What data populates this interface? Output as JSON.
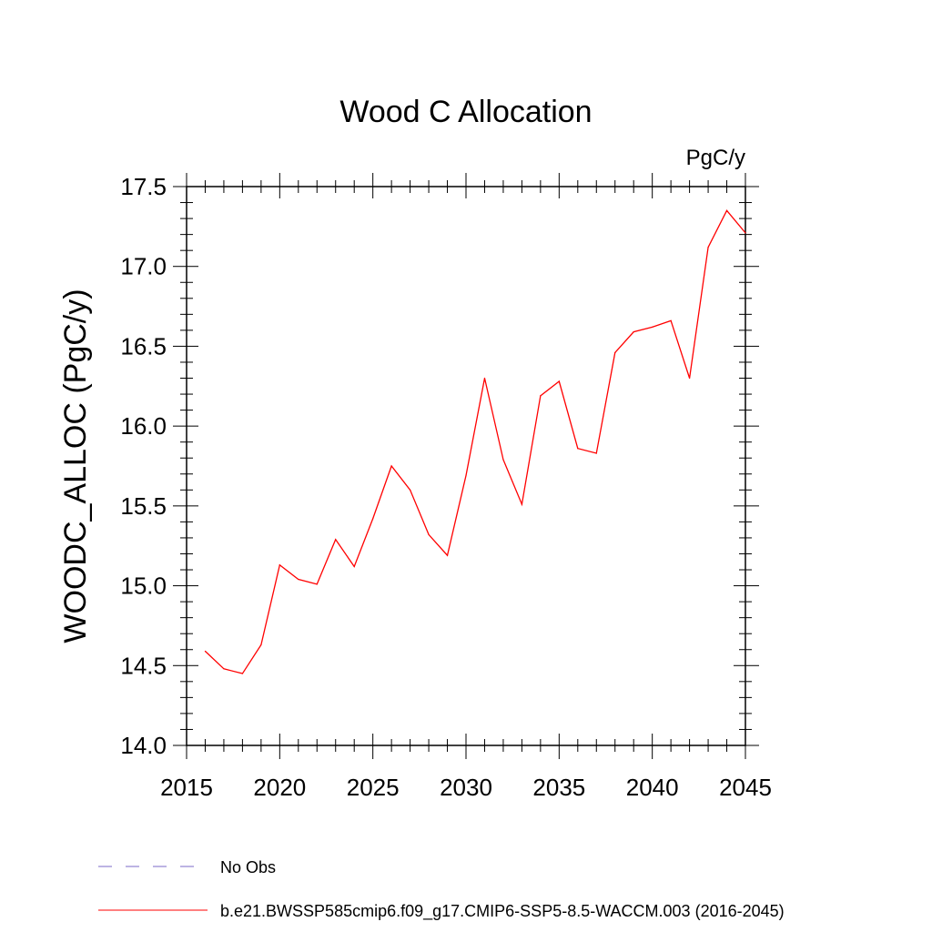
{
  "chart_data": {
    "type": "line",
    "title": "Wood C Allocation",
    "units_label": "PgC/y",
    "ylabel": "WOODC_ALLOC  (PgC/y)",
    "xlabel": "",
    "xlim": [
      2015,
      2045
    ],
    "ylim": [
      14.0,
      17.5
    ],
    "x_major_ticks": [
      2015,
      2020,
      2025,
      2030,
      2035,
      2040,
      2045
    ],
    "x_tick_labels": [
      "2015",
      "2020",
      "2025",
      "2030",
      "2035",
      "2040",
      "2045"
    ],
    "y_major_ticks": [
      14.0,
      14.5,
      15.0,
      15.5,
      16.0,
      16.5,
      17.0,
      17.5
    ],
    "y_tick_labels": [
      "14.0",
      "14.5",
      "15.0",
      "15.5",
      "16.0",
      "16.5",
      "17.0",
      "17.5"
    ],
    "grid": false,
    "legend_position": "bottom-left",
    "series": [
      {
        "name": "b.e21.BWSSP585cmip6.f09_g17.CMIP6-SSP5-8.5-WACCM.003 (2016-2045)",
        "color": "#ff0000",
        "line_style": "solid",
        "x": [
          2016,
          2017,
          2018,
          2019,
          2020,
          2021,
          2022,
          2023,
          2024,
          2025,
          2026,
          2027,
          2028,
          2029,
          2030,
          2031,
          2032,
          2033,
          2034,
          2035,
          2036,
          2037,
          2038,
          2039,
          2040,
          2041,
          2042,
          2043,
          2044,
          2045
        ],
        "values": [
          14.59,
          14.48,
          14.45,
          14.63,
          15.13,
          15.04,
          15.01,
          15.29,
          15.12,
          15.42,
          15.75,
          15.6,
          15.32,
          15.19,
          15.69,
          16.3,
          15.79,
          15.51,
          16.19,
          16.28,
          15.86,
          15.83,
          16.46,
          16.59,
          16.62,
          16.66,
          16.3,
          17.12,
          17.35,
          17.21
        ]
      },
      {
        "name": "No Obs",
        "color": "#7b68c8",
        "line_style": "dashed",
        "x": [],
        "values": []
      }
    ]
  }
}
